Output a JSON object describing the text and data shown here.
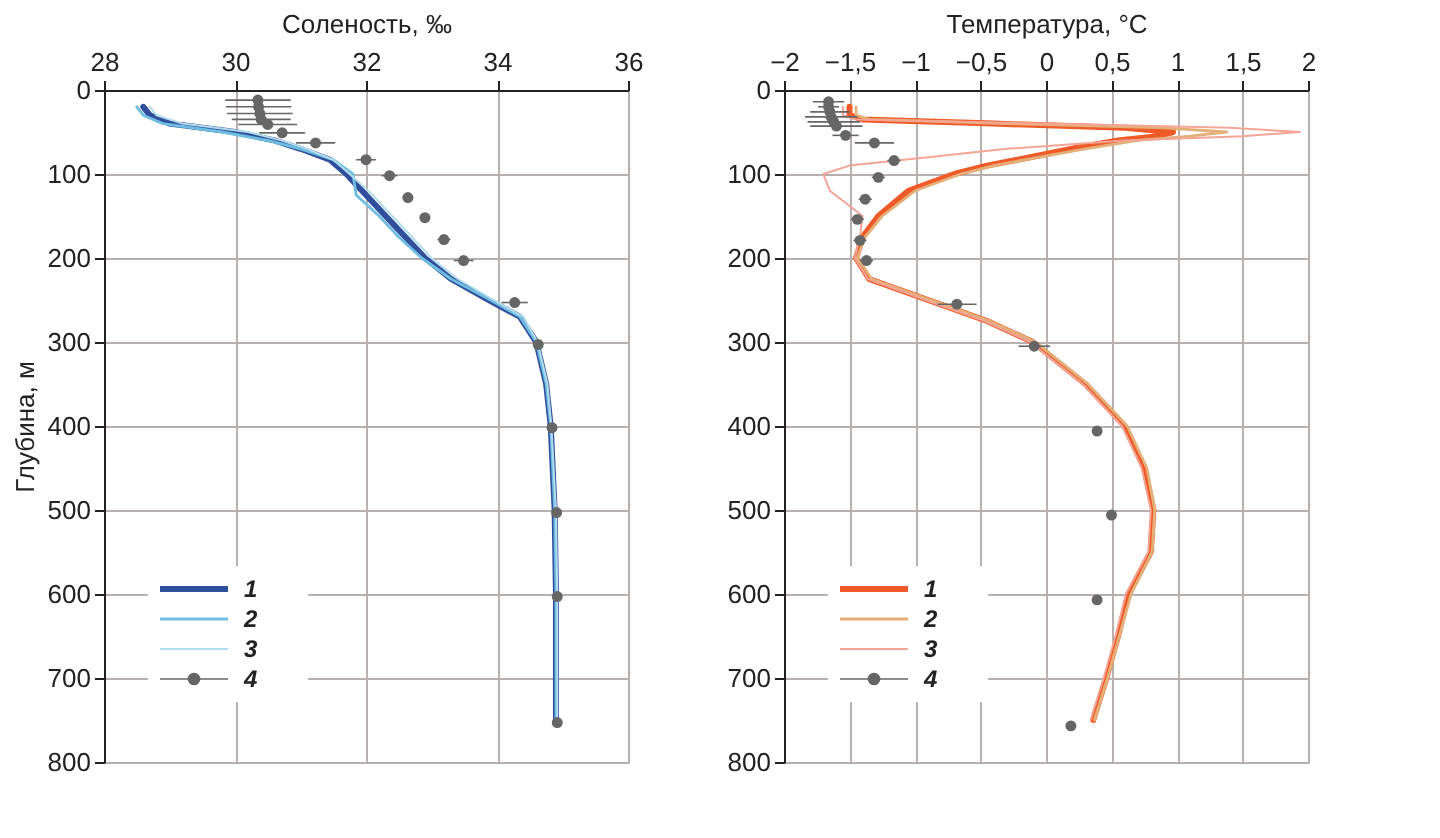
{
  "chart_data": [
    {
      "type": "line",
      "xlabel": "Соленость, ‰",
      "ylabel": "Глубина, м",
      "xlim": [
        28,
        36
      ],
      "xticks": [
        28,
        30,
        32,
        34,
        36
      ],
      "ylim": [
        800,
        0
      ],
      "yticks": [
        0,
        100,
        200,
        300,
        400,
        500,
        600,
        700,
        800
      ],
      "grid": true,
      "legend": "bottom left",
      "line_style": "solid",
      "series": [
        {
          "name": "1",
          "type": "line",
          "color": "#2f4f9c",
          "x": [
            28.6,
            28.7,
            29.0,
            30.0,
            30.6,
            31.0,
            31.45,
            31.7,
            32.0,
            32.3,
            32.6,
            32.9,
            33.3,
            33.87,
            34.35,
            34.6,
            34.75,
            34.82,
            34.88,
            34.9,
            34.9
          ],
          "values": [
            20,
            30,
            40,
            50,
            60,
            70,
            83,
            100,
            125,
            150,
            175,
            200,
            225,
            250,
            270,
            300,
            350,
            400,
            500,
            600,
            750
          ]
        },
        {
          "name": "2",
          "type": "line",
          "color": "#6fbde0",
          "x": [
            28.5,
            28.6,
            28.9,
            29.8,
            30.5,
            31.0,
            31.5,
            31.8,
            31.85,
            32.2,
            32.5,
            32.85,
            33.3,
            33.9,
            34.35,
            34.6,
            34.75,
            34.82,
            34.88,
            34.9,
            34.9
          ],
          "values": [
            20,
            30,
            40,
            50,
            60,
            70,
            83,
            100,
            125,
            150,
            175,
            200,
            225,
            250,
            270,
            300,
            350,
            400,
            500,
            600,
            750
          ]
        },
        {
          "name": "3",
          "type": "line",
          "color": "#b3dcef",
          "x": [
            28.7,
            28.8,
            29.2,
            30.2,
            30.7,
            31.1,
            31.5,
            31.75,
            32.1,
            32.4,
            32.7,
            33.0,
            33.4,
            33.95,
            34.4,
            34.62,
            34.77,
            34.83,
            34.9,
            34.92,
            34.92
          ],
          "values": [
            20,
            30,
            40,
            50,
            60,
            70,
            83,
            100,
            125,
            150,
            175,
            200,
            225,
            250,
            270,
            300,
            350,
            400,
            500,
            600,
            750
          ]
        },
        {
          "name": "4",
          "type": "scatter",
          "color": "#666666",
          "marker": "circle",
          "x": [
            30.35,
            30.36,
            30.38,
            30.4,
            30.5,
            30.72,
            31.23,
            32.0,
            32.36,
            32.64,
            32.9,
            33.19,
            33.49,
            34.27,
            34.63,
            34.84,
            34.91,
            34.92,
            34.92
          ],
          "values": [
            12,
            20,
            28,
            35,
            41,
            51,
            63,
            83,
            102,
            128,
            152,
            178,
            203,
            253,
            303,
            402,
            503,
            603,
            753
          ],
          "xerrors": [
            0.5,
            0.5,
            0.5,
            0.45,
            0.45,
            0.35,
            0.3,
            0.15,
            0.12,
            0.08,
            0.08,
            0.1,
            0.15,
            0.2,
            null,
            null,
            null,
            null,
            null
          ]
        }
      ]
    },
    {
      "type": "line",
      "xlabel": "Температура, °C",
      "xlim": [
        -2,
        2
      ],
      "xticks": [
        {
          "value": -2,
          "label": "−2"
        },
        {
          "value": -1.5,
          "label": "−1,5"
        },
        {
          "value": -1,
          "label": "−1"
        },
        {
          "value": -0.5,
          "label": "−0,5"
        },
        0,
        {
          "value": 0.5,
          "label": "0,5"
        },
        1,
        {
          "value": 1.5,
          "label": "1,5"
        },
        2
      ],
      "ylim": [
        800,
        0
      ],
      "yticks": [
        0,
        100,
        200,
        300,
        400,
        500,
        600,
        700,
        800
      ],
      "grid": true,
      "legend": "bottom left",
      "line_style": "solid",
      "series": [
        {
          "name": "1",
          "type": "line",
          "color": "#f05a28",
          "x": [
            -1.5,
            -1.5,
            -1.4,
            -0.4,
            0.6,
            0.97,
            0.85,
            0.55,
            0.2,
            -0.12,
            -0.45,
            -0.7,
            -1.05,
            -1.28,
            -1.4,
            -1.45,
            -1.35,
            -0.9,
            -0.45,
            -0.1,
            0.3,
            0.6,
            0.75,
            0.82,
            0.8,
            0.63,
            0.55,
            0.46,
            0.36
          ],
          "values": [
            20,
            30,
            35,
            40,
            45,
            50,
            55,
            60,
            70,
            80,
            90,
            100,
            120,
            150,
            175,
            200,
            225,
            250,
            275,
            300,
            350,
            400,
            450,
            500,
            550,
            600,
            650,
            700,
            750
          ]
        },
        {
          "name": "2",
          "type": "line",
          "color": "#e4b07a",
          "x": [
            -1.45,
            -1.45,
            -1.35,
            -0.3,
            0.9,
            1.38,
            1.1,
            0.7,
            0.3,
            -0.05,
            -0.4,
            -0.65,
            -1.0,
            -1.25,
            -1.38,
            -1.44,
            -1.33,
            -0.88,
            -0.43,
            -0.08,
            0.32,
            0.62,
            0.77,
            0.83,
            0.81,
            0.65,
            0.56,
            0.47,
            0.37
          ],
          "values": [
            20,
            30,
            35,
            40,
            45,
            50,
            55,
            60,
            70,
            80,
            90,
            100,
            120,
            150,
            175,
            200,
            225,
            250,
            275,
            300,
            350,
            400,
            450,
            500,
            550,
            600,
            650,
            700,
            750
          ]
        },
        {
          "name": "3",
          "type": "line",
          "color": "#f5a595",
          "x": [
            -1.55,
            -1.55,
            -1.45,
            0.0,
            1.4,
            1.94,
            1.5,
            0.6,
            -0.3,
            -0.9,
            -1.5,
            -1.7,
            -1.65,
            -1.4,
            -1.42,
            -1.46,
            -1.36,
            -0.92,
            -0.47,
            -0.12,
            0.28,
            0.58,
            0.73,
            0.8,
            0.78,
            0.61,
            0.53,
            0.44,
            0.34
          ],
          "values": [
            20,
            30,
            35,
            40,
            45,
            50,
            55,
            60,
            70,
            80,
            90,
            100,
            120,
            150,
            175,
            200,
            225,
            250,
            275,
            300,
            350,
            400,
            450,
            500,
            550,
            600,
            650,
            700,
            750
          ]
        },
        {
          "name": "4",
          "type": "scatter",
          "color": "#666666",
          "marker": "circle",
          "x": [
            -1.66,
            -1.66,
            -1.65,
            -1.64,
            -1.62,
            -1.6,
            -1.53,
            -1.31,
            -1.16,
            -1.28,
            -1.38,
            -1.44,
            -1.42,
            -1.37,
            -0.68,
            -0.09,
            0.39,
            0.5,
            0.39,
            0.19
          ],
          "values": [
            14,
            20,
            26,
            32,
            38,
            43,
            54,
            63,
            84,
            104,
            130,
            154,
            179,
            203,
            255,
            305,
            406,
            506,
            607,
            757
          ],
          "xerrors": [
            0.12,
            0.08,
            0.15,
            0.2,
            0.2,
            0.2,
            0.1,
            0.15,
            0.05,
            0.05,
            0.05,
            0.05,
            0.05,
            0.05,
            0.15,
            0.12,
            null,
            null,
            null,
            null
          ]
        }
      ]
    }
  ]
}
